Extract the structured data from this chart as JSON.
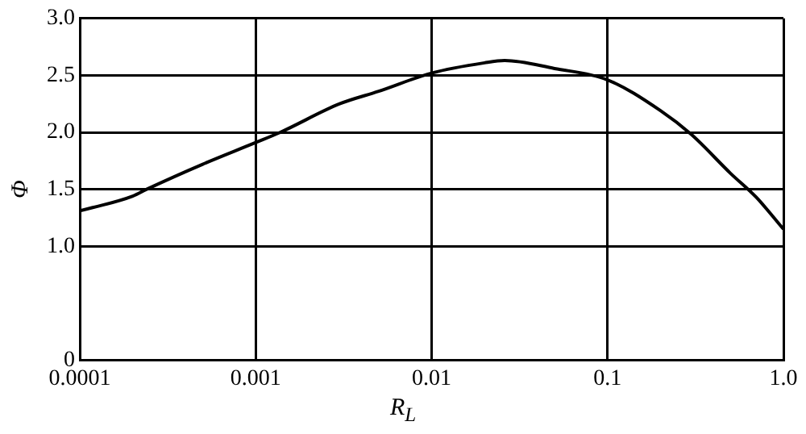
{
  "chart_data": {
    "type": "line",
    "xlabel": "R$_{L}$",
    "ylabel": "Φ",
    "x": [
      0.0001,
      0.0002,
      0.00024,
      0.0005,
      0.001,
      0.00138,
      0.003,
      0.005,
      0.01,
      0.02,
      0.026,
      0.05,
      0.1,
      0.2,
      0.3,
      0.5,
      0.7,
      1.0
    ],
    "series": [
      {
        "color": "#000000",
        "values": [
          1.31,
          1.44,
          1.5,
          1.72,
          1.91,
          2.0,
          2.25,
          2.36,
          2.52,
          2.61,
          2.63,
          2.56,
          2.46,
          2.19,
          1.98,
          1.64,
          1.43,
          1.15
        ]
      }
    ],
    "log": "x",
    "xlim": [
      0.0001,
      1.0
    ],
    "xticks": [
      0.0001,
      0.001,
      0.01,
      0.1,
      {
        "value": 1,
        "label": "1.0"
      }
    ],
    "ylim": [
      0,
      3.0
    ],
    "yticks": [
      0,
      {
        "value": 1,
        "label": "1.0"
      },
      1.5,
      {
        "value": 2,
        "label": "2.0"
      },
      2.5,
      {
        "value": 3,
        "label": "3.0"
      }
    ],
    "grid": true,
    "marker": "none",
    "line_style": "solid"
  }
}
